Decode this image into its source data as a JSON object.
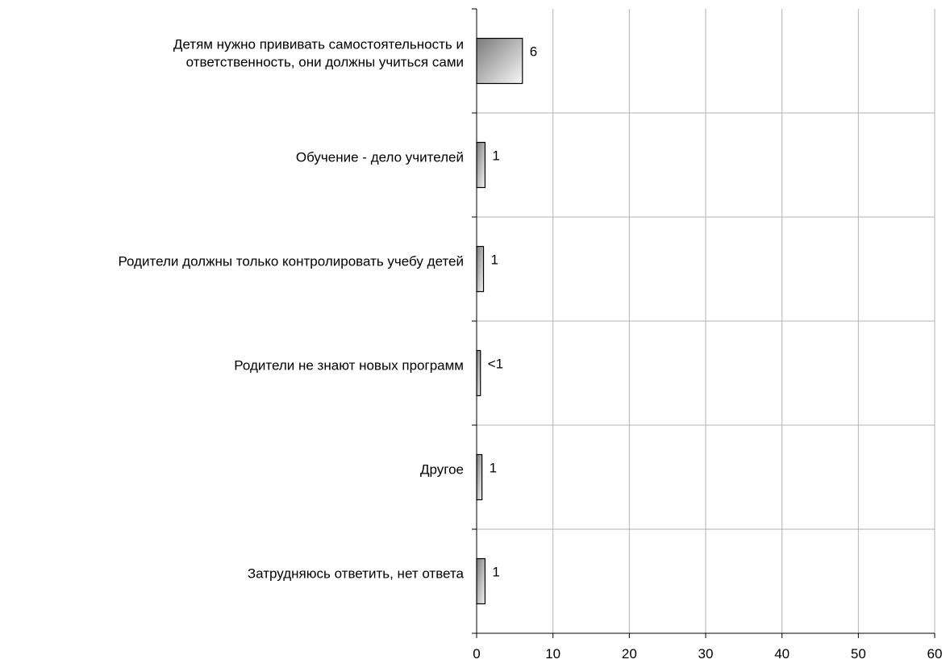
{
  "chart_data": {
    "type": "bar",
    "orientation": "horizontal",
    "categories": [
      [
        "Детям нужно прививать самостоятельность и",
        "ответственность, они должны учиться сами"
      ],
      [
        "Обучение - дело учителей"
      ],
      [
        "Родители должны только контролировать учебу детей"
      ],
      [
        "Родители не знают новых программ"
      ],
      [
        "Другое"
      ],
      [
        "Затрудняюсь ответить, нет ответа"
      ]
    ],
    "values": [
      6,
      1.1,
      0.9,
      0.5,
      0.7,
      1.1
    ],
    "data_labels": [
      "6",
      "1",
      "1",
      "<1",
      "1",
      "1"
    ],
    "xlim": [
      0,
      60
    ],
    "xticks": [
      "0",
      "10",
      "20",
      "30",
      "40",
      "50",
      "60"
    ],
    "grid": true,
    "legend": "none",
    "title": "",
    "xlabel": "",
    "ylabel": "",
    "colors": {
      "bar_dark": "#7a7a7a",
      "bar_light": "#f7f7f7",
      "bar_stroke": "#000000",
      "grid": "#b3b3b3",
      "axis": "#000000"
    }
  }
}
